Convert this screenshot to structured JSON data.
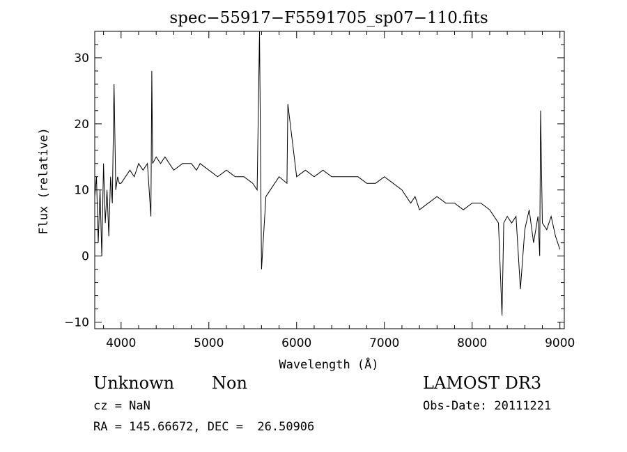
{
  "chart_data": {
    "type": "line",
    "title": "spec−55917−F5591705_sp07−110.fits",
    "xlabel": "Wavelength (Å)",
    "ylabel": "Flux (relative)",
    "xlim": [
      3700,
      9050
    ],
    "ylim": [
      -11,
      34
    ],
    "xticks": [
      4000,
      5000,
      6000,
      7000,
      8000,
      9000
    ],
    "xtick_labels": [
      "4000",
      "5000",
      "6000",
      "7000",
      "8000",
      "9000"
    ],
    "yticks": [
      -10,
      0,
      10,
      20,
      30
    ],
    "ytick_labels": [
      "−10",
      "0",
      "10",
      "20",
      "30"
    ],
    "grid": false,
    "series": [
      {
        "color": "#000000",
        "x": [
          3700,
          3720,
          3740,
          3760,
          3780,
          3800,
          3820,
          3840,
          3860,
          3880,
          3900,
          3920,
          3940,
          3960,
          3980,
          4000,
          4050,
          4100,
          4150,
          4200,
          4250,
          4300,
          4340,
          4350,
          4360,
          4400,
          4450,
          4500,
          4550,
          4600,
          4700,
          4800,
          4860,
          4900,
          5000,
          5100,
          5200,
          5300,
          5400,
          5500,
          5550,
          5577,
          5600,
          5650,
          5700,
          5800,
          5890,
          5900,
          6000,
          6100,
          6200,
          6300,
          6400,
          6500,
          6600,
          6700,
          6800,
          6900,
          7000,
          7100,
          7200,
          7250,
          7300,
          7350,
          7400,
          7500,
          7600,
          7700,
          7800,
          7900,
          8000,
          8100,
          8200,
          8300,
          8340,
          8360,
          8400,
          8450,
          8500,
          8550,
          8600,
          8650,
          8700,
          8750,
          8770,
          8780,
          8800,
          8850,
          8900,
          8950,
          9000
        ],
        "y": [
          9,
          12,
          2,
          10,
          0,
          14,
          5,
          10,
          3,
          12,
          8,
          26,
          10,
          12,
          11,
          11,
          12,
          13,
          12,
          14,
          13,
          14,
          6,
          28,
          14,
          15,
          14,
          15,
          14,
          13,
          14,
          14,
          13,
          14,
          13,
          12,
          13,
          12,
          12,
          11,
          10,
          34,
          -2,
          9,
          10,
          12,
          11,
          23,
          12,
          13,
          12,
          13,
          12,
          12,
          12,
          12,
          11,
          11,
          12,
          11,
          10,
          9,
          8,
          9,
          7,
          8,
          9,
          8,
          8,
          7,
          8,
          8,
          7,
          5,
          -9,
          5,
          6,
          5,
          6,
          -5,
          4,
          7,
          2,
          6,
          0,
          22,
          5,
          4,
          6,
          3,
          1
        ]
      }
    ]
  },
  "info": {
    "obj_class": "Unknown",
    "obj_subclass": "Non",
    "survey": "LAMOST DR3",
    "cz": "cz = NaN",
    "obs_date": "Obs-Date: 20111221",
    "radec": "RA = 145.66672, DEC =  26.50906"
  }
}
